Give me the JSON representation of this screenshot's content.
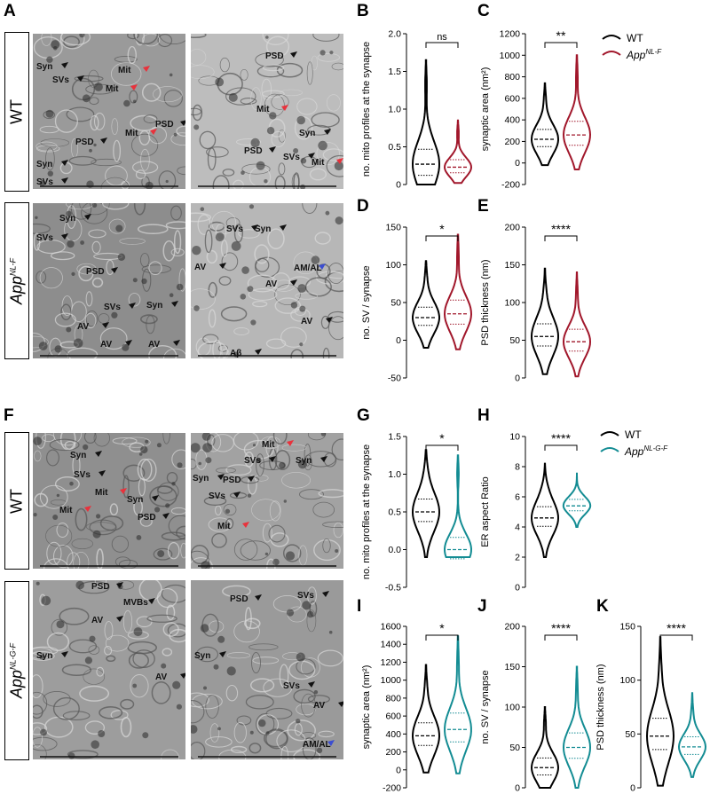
{
  "panels": {
    "A": "A",
    "B": "B",
    "C": "C",
    "D": "D",
    "E": "E",
    "F": "F",
    "G": "G",
    "H": "H",
    "I": "I",
    "J": "J",
    "K": "K"
  },
  "colors": {
    "wt": "#000000",
    "app_nl_f": "#a1172b",
    "app_nl_g_f": "#138c93",
    "red_arrow": "#e8323c",
    "blue_arrow": "#3c4ed0"
  },
  "row_labels": {
    "wt_top": "WT",
    "mut_top_main": "App",
    "mut_top_sup": "NL-F",
    "wt_bottom": "WT",
    "mut_bottom_main": "App",
    "mut_bottom_sup": "NL-G-F"
  },
  "legend_top": {
    "wt": "WT",
    "mut_main": "App",
    "mut_sup": "NL-F"
  },
  "legend_bottom": {
    "wt": "WT",
    "mut_main": "App",
    "mut_sup": "NL-G-F"
  },
  "em_labels": {
    "a1": [
      "Syn",
      "SVs",
      "Mit",
      "Mit",
      "PSD",
      "Mit",
      "PSD",
      "Syn",
      "SVs"
    ],
    "a2": [
      "PSD",
      "Mit",
      "Syn",
      "PSD",
      "SVs",
      "Mit"
    ],
    "a3": [
      "Syn",
      "SVs",
      "PSD",
      "SVs",
      "Syn",
      "AV",
      "AV",
      "AV"
    ],
    "a4": [
      "SVs",
      "Syn",
      "AV",
      "AM/AL",
      "AV",
      "AV",
      "Aβ"
    ],
    "f1": [
      "Syn",
      "SVs",
      "Mit",
      "Syn",
      "Mit",
      "PSD"
    ],
    "f2": [
      "Mit",
      "SVs",
      "Syn",
      "Syn",
      "PSD",
      "SVs",
      "Mit"
    ],
    "f3": [
      "PSD",
      "MVBs",
      "AV",
      "Syn",
      "AV"
    ],
    "f4": [
      "SVs",
      "PSD",
      "Syn",
      "SVs",
      "AV",
      "AM/AL"
    ]
  },
  "chart_data": [
    {
      "id": "B",
      "type": "violin",
      "ylabel": "no. mito profiles at the synapse",
      "ylim": [
        0,
        2
      ],
      "yticks": [
        "0",
        "0.5",
        "1.0",
        "1.5",
        "2.0"
      ],
      "significance": "ns",
      "series": [
        {
          "name": "WT",
          "median": 0.27
        },
        {
          "name": "App NL-F",
          "median": 0.23
        }
      ]
    },
    {
      "id": "C",
      "type": "violin",
      "ylabel": "synaptic area (nm²)",
      "ylim": [
        -200,
        1200
      ],
      "yticks": [
        "-200",
        "0",
        "200",
        "400",
        "600",
        "800",
        "1000",
        "1200"
      ],
      "significance": "**",
      "series": [
        {
          "name": "WT",
          "median": 220
        },
        {
          "name": "App NL-F",
          "median": 260
        }
      ]
    },
    {
      "id": "D",
      "type": "violin",
      "ylabel": "no. SV / synapse",
      "ylim": [
        -50,
        150
      ],
      "yticks": [
        "-50",
        "0",
        "50",
        "100",
        "150"
      ],
      "significance": "*",
      "series": [
        {
          "name": "WT",
          "median": 30
        },
        {
          "name": "App NL-F",
          "median": 35
        }
      ]
    },
    {
      "id": "E",
      "type": "violin",
      "ylabel": "PSD thickness (nm)",
      "ylim": [
        0,
        200
      ],
      "yticks": [
        "0",
        "50",
        "100",
        "150",
        "200"
      ],
      "significance": "****",
      "series": [
        {
          "name": "WT",
          "median": 55
        },
        {
          "name": "App NL-F",
          "median": 48
        }
      ]
    },
    {
      "id": "G",
      "type": "violin",
      "ylabel": "no. mito profiles at the synapse",
      "ylim": [
        -0.5,
        1.5
      ],
      "yticks": [
        "-0.5",
        "0.0",
        "0.5",
        "1.0",
        "1.5"
      ],
      "significance": "*",
      "series": [
        {
          "name": "WT",
          "median": 0.5
        },
        {
          "name": "App NL-G-F",
          "median": 0.0
        }
      ]
    },
    {
      "id": "H",
      "type": "violin",
      "ylabel": "ER aspect Ratio",
      "ylim": [
        0,
        10
      ],
      "yticks": [
        "0",
        "2",
        "4",
        "6",
        "8",
        "10"
      ],
      "significance": "****",
      "series": [
        {
          "name": "WT",
          "median": 4.6
        },
        {
          "name": "App NL-G-F",
          "median": 5.4
        }
      ]
    },
    {
      "id": "I",
      "type": "violin",
      "ylabel": "synaptic area (nm²)",
      "ylim": [
        -200,
        1600
      ],
      "yticks": [
        "-200",
        "0",
        "200",
        "400",
        "600",
        "800",
        "1000",
        "1200",
        "1400",
        "1600"
      ],
      "significance": "*",
      "series": [
        {
          "name": "WT",
          "median": 380
        },
        {
          "name": "App NL-G-F",
          "median": 450
        }
      ]
    },
    {
      "id": "J",
      "type": "violin",
      "ylabel": "no. SV / synapse",
      "ylim": [
        0,
        200
      ],
      "yticks": [
        "0",
        "50",
        "100",
        "150",
        "200"
      ],
      "significance": "****",
      "series": [
        {
          "name": "WT",
          "median": 25
        },
        {
          "name": "App NL-G-F",
          "median": 50
        }
      ]
    },
    {
      "id": "K",
      "type": "violin",
      "ylabel": "PSD thickness (nm)",
      "ylim": [
        0,
        150
      ],
      "yticks": [
        "0",
        "50",
        "100",
        "150"
      ],
      "significance": "****",
      "series": [
        {
          "name": "WT",
          "median": 48
        },
        {
          "name": "App NL-G-F",
          "median": 38
        }
      ]
    }
  ]
}
